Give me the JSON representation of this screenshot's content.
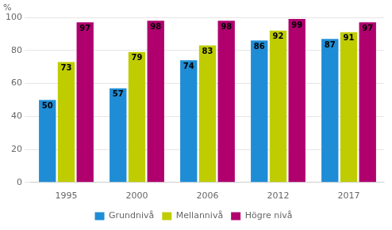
{
  "chart_data": {
    "type": "bar",
    "categories": [
      "1995",
      "2000",
      "2006",
      "2012",
      "2017"
    ],
    "series": [
      {
        "name": "Grundnivå",
        "color": "#1F8DD6",
        "values": [
          50,
          57,
          74,
          86,
          87
        ]
      },
      {
        "name": "Mellannivå",
        "color": "#BFCD00",
        "values": [
          73,
          79,
          83,
          92,
          91
        ]
      },
      {
        "name": "Högre nivå",
        "color": "#B0006E",
        "values": [
          97,
          98,
          98,
          99,
          97
        ]
      }
    ],
    "ylabel": "%",
    "ylim": [
      0,
      100
    ],
    "yticks": [
      0,
      20,
      40,
      60,
      80,
      100
    ],
    "grid": true,
    "legend": "bottom",
    "data_labels": true
  }
}
